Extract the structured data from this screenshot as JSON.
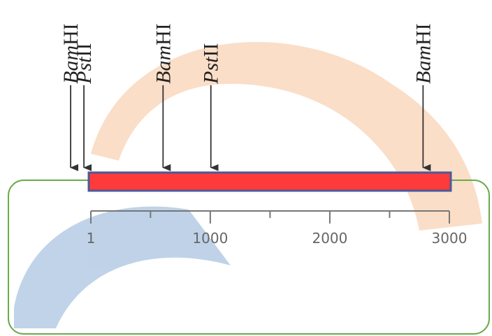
{
  "map": {
    "scale": {
      "xlim": [
        1,
        3000
      ],
      "major_ticks": [
        1,
        1000,
        2000,
        3000
      ],
      "minor_ticks": [
        500,
        1500,
        2500
      ]
    },
    "sites": [
      {
        "enzyme": "Bam",
        "suffix": "HI",
        "position": -168
      },
      {
        "enzyme": "Pst",
        "suffix": "II",
        "position": -57
      },
      {
        "enzyme": "Bam",
        "suffix": "HI",
        "position": 605
      },
      {
        "enzyme": "Pst",
        "suffix": "II",
        "position": 1005
      },
      {
        "enzyme": "Bam",
        "suffix": "HI",
        "position": 2780
      }
    ]
  }
}
